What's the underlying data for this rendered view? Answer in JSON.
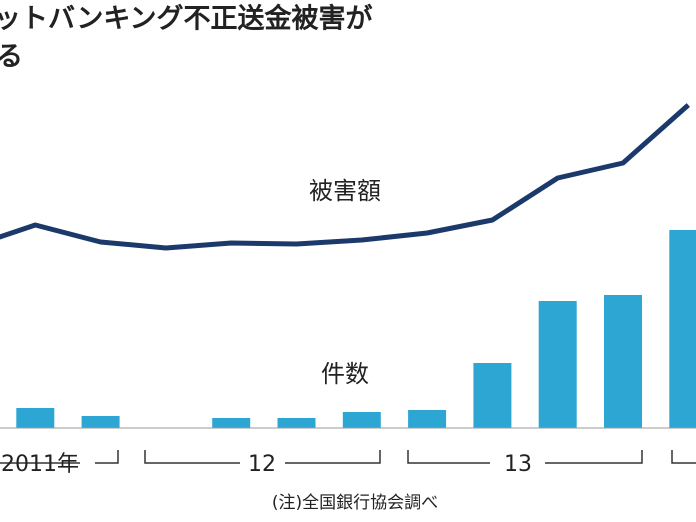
{
  "chart_data": {
    "type": "bar-line",
    "title": "ットバンキング不正送金被害が",
    "subtitle": "る",
    "categories": [
      null,
      null,
      null,
      null,
      null,
      null,
      null,
      null,
      null,
      null,
      null,
      null
    ],
    "series": [
      {
        "name": "件数",
        "type": "bar",
        "color": "#2ea6d4",
        "values": [
          null,
          20,
          12,
          0,
          10,
          10,
          16,
          18,
          65,
          127,
          133,
          198
        ]
      },
      {
        "name": "被害額",
        "type": "line",
        "color": "#1b3a6b",
        "values": [
          181,
          203,
          186,
          180,
          185,
          184,
          188,
          195,
          208,
          250,
          265,
          323
        ]
      }
    ],
    "periods": [
      "2011年",
      "12",
      "13"
    ],
    "note": "(注)全国銀行協会調べ"
  }
}
